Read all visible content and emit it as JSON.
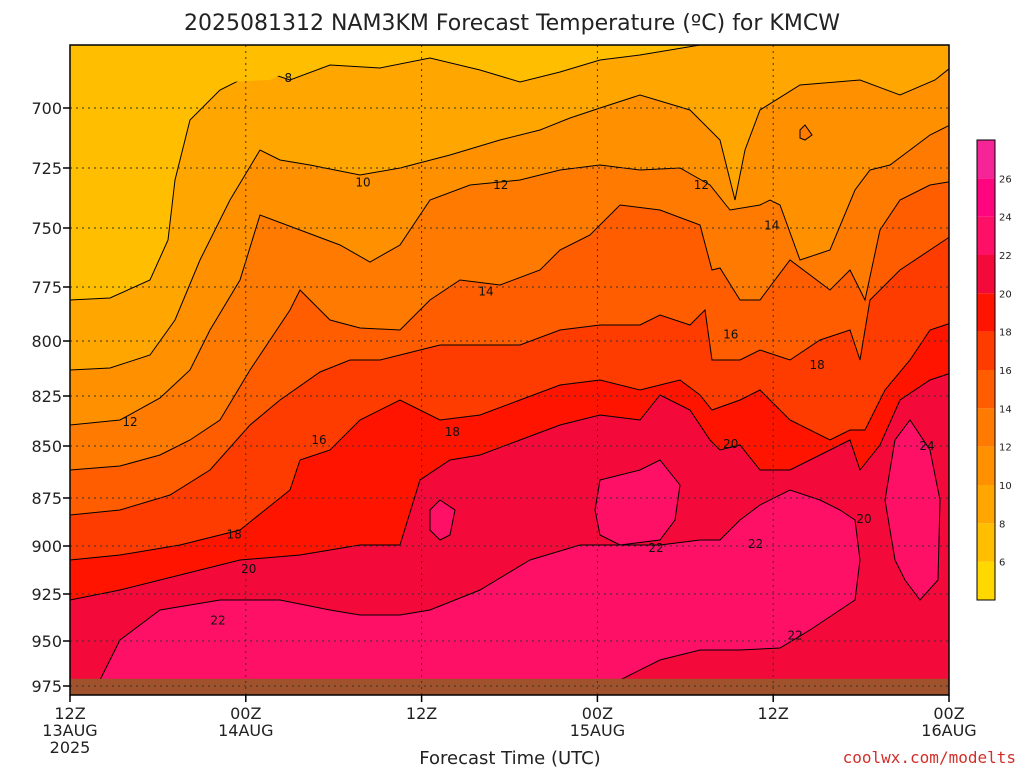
{
  "chart_data": {
    "type": "heatmap",
    "title": "2025081312 NAM3KM Forecast Temperature (ºC) for KMCW",
    "xlabel": "Forecast Time (UTC)",
    "ylabel": "",
    "x_ticks": [
      {
        "l1": "12Z",
        "l2": "13AUG",
        "l3": "2025"
      },
      {
        "l1": "00Z",
        "l2": "14AUG",
        "l3": ""
      },
      {
        "l1": "12Z",
        "l2": "",
        "l3": ""
      },
      {
        "l1": "00Z",
        "l2": "15AUG",
        "l3": ""
      },
      {
        "l1": "12Z",
        "l2": "",
        "l3": ""
      },
      {
        "l1": "00Z",
        "l2": "16AUG",
        "l3": ""
      }
    ],
    "x_hours": [
      0,
      12,
      24,
      36,
      48,
      60
    ],
    "y_ticks": [
      700,
      725,
      750,
      775,
      800,
      825,
      850,
      875,
      900,
      925,
      950,
      975
    ],
    "ylim": [
      675,
      979
    ],
    "colorbar": {
      "levels": [
        6,
        8,
        10,
        12,
        14,
        16,
        18,
        20,
        22,
        24,
        26
      ],
      "colors": [
        "#ffd800",
        "#ffbe00",
        "#ffa700",
        "#ff9100",
        "#ff7a00",
        "#ff5d00",
        "#ff3c00",
        "#ff1400",
        "#f30a3a",
        "#ff1067",
        "#ff0580",
        "#f52598"
      ]
    },
    "contour_labels": [
      {
        "text": "8",
        "hour": 14.9,
        "p": 688
      },
      {
        "text": "10",
        "hour": 20,
        "p": 731
      },
      {
        "text": "12",
        "hour": 29.4,
        "p": 732
      },
      {
        "text": "12",
        "hour": 43.1,
        "p": 732
      },
      {
        "text": "14",
        "hour": 47.9,
        "p": 749
      },
      {
        "text": "14",
        "hour": 28.4,
        "p": 777
      },
      {
        "text": "16",
        "hour": 45.1,
        "p": 797
      },
      {
        "text": "18",
        "hour": 51,
        "p": 811
      },
      {
        "text": "12",
        "hour": 4.1,
        "p": 838
      },
      {
        "text": "16",
        "hour": 17,
        "p": 847
      },
      {
        "text": "18",
        "hour": 26.1,
        "p": 843
      },
      {
        "text": "20",
        "hour": 45.1,
        "p": 849
      },
      {
        "text": "24",
        "hour": 58.5,
        "p": 850
      },
      {
        "text": "20",
        "hour": 54.2,
        "p": 886
      },
      {
        "text": "18",
        "hour": 11.2,
        "p": 894
      },
      {
        "text": "22",
        "hour": 40,
        "p": 901
      },
      {
        "text": "22",
        "hour": 46.8,
        "p": 899
      },
      {
        "text": "20",
        "hour": 12.2,
        "p": 912
      },
      {
        "text": "22",
        "hour": 10.1,
        "p": 939
      },
      {
        "text": "22",
        "hour": 49.5,
        "p": 947
      }
    ],
    "ground_level_hpa": 971,
    "grid": true
  },
  "credit": "coolwx.com/modelts"
}
